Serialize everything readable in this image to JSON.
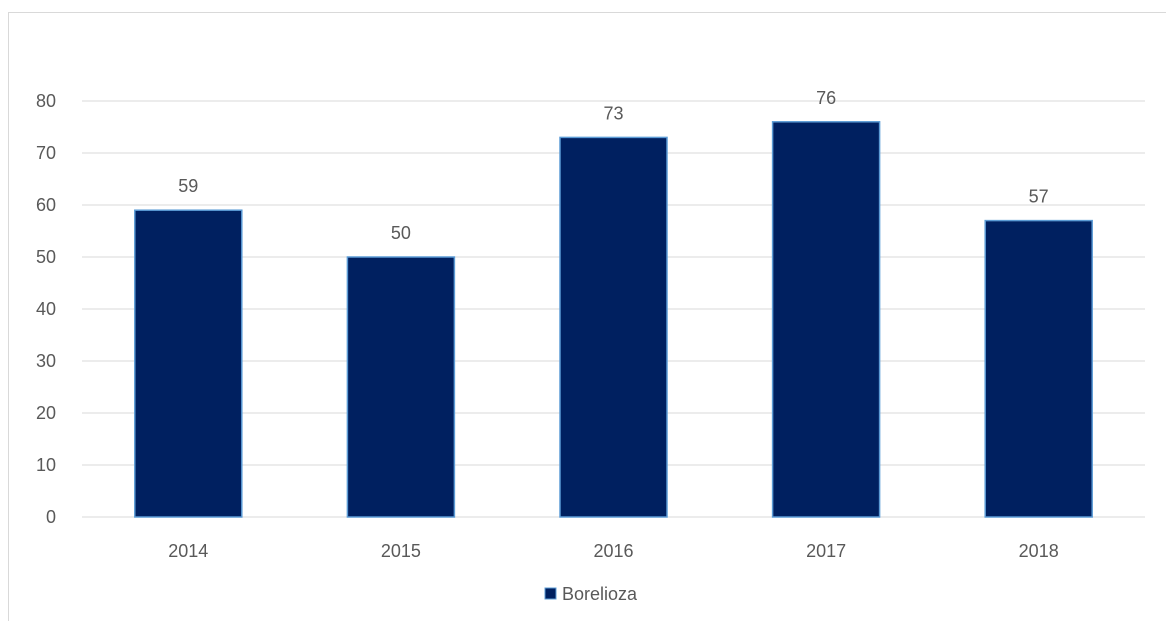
{
  "chart_data": {
    "type": "bar",
    "categories": [
      "2014",
      "2015",
      "2016",
      "2017",
      "2018"
    ],
    "series": [
      {
        "name": "Borelioza",
        "values": [
          59,
          50,
          73,
          76,
          57
        ],
        "color": "#002060",
        "border_color": "#5b9bd5"
      }
    ],
    "ylim": [
      0,
      80
    ],
    "yticks": [
      0,
      10,
      20,
      30,
      40,
      50,
      60,
      70,
      80
    ],
    "grid": true,
    "data_labels": true,
    "legend_position": "bottom",
    "gridline_color": "#d9d9d9",
    "text_color": "#595959"
  }
}
